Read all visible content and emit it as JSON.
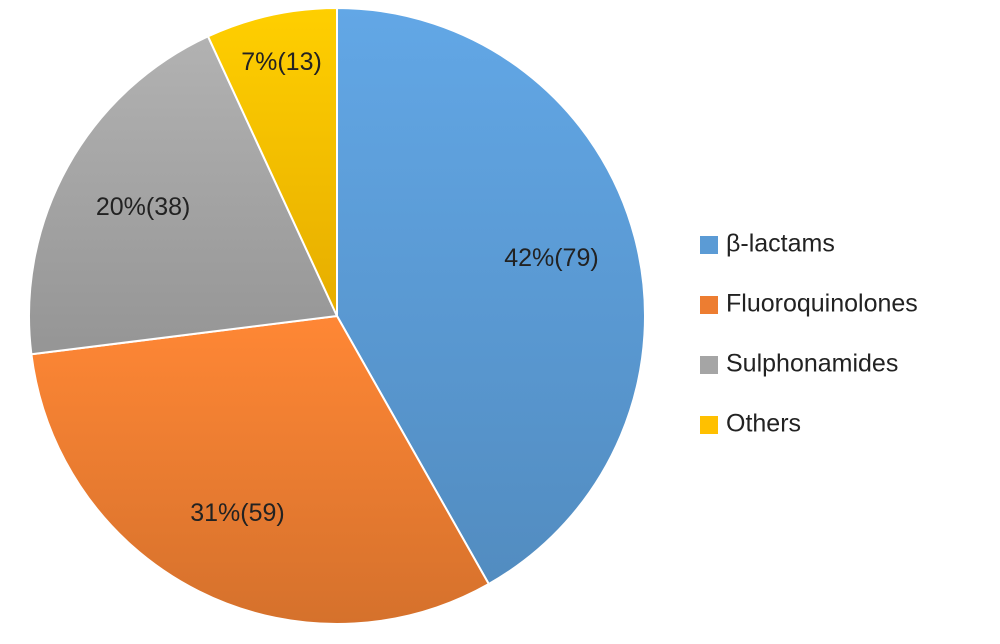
{
  "chart_data": {
    "type": "pie",
    "categories": [
      "β-lactams",
      "Fluoroquinolones",
      "Sulphonamides",
      "Others"
    ],
    "values": [
      79,
      59,
      38,
      13
    ],
    "value_labels": [
      "42%(79)",
      "31%(59)",
      "20%(38)",
      "7%(13)"
    ],
    "colors": [
      "#5b9bd5",
      "#ed7d31",
      "#a5a5a5",
      "#ffc000"
    ],
    "legend": "right"
  }
}
